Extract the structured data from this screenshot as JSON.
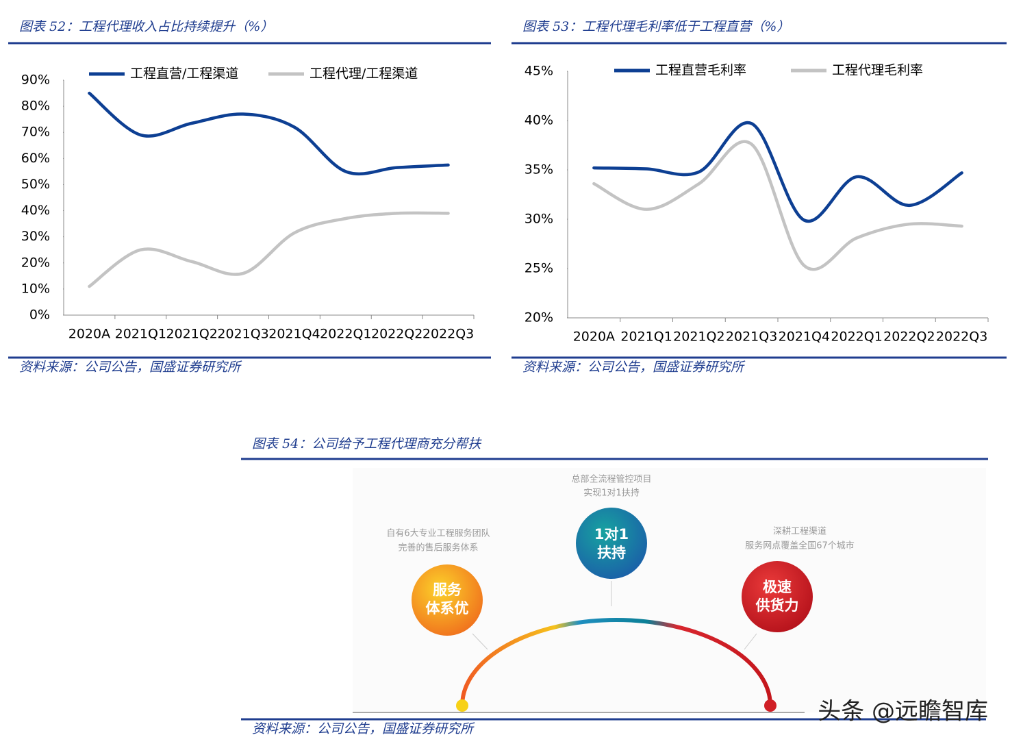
{
  "chart_data": [
    {
      "type": "line",
      "title": "图表 52：工程代理收入占比持续提升（%）",
      "categories": [
        "2020A",
        "2021Q1",
        "2021Q2",
        "2021Q3",
        "2021Q4",
        "2022Q1",
        "2022Q2",
        "2022Q3"
      ],
      "series": [
        {
          "name": "工程直营/工程渠道",
          "color": "#0d3f93",
          "values": [
            85,
            69,
            73.5,
            77,
            72,
            55,
            56.5,
            57.5
          ]
        },
        {
          "name": "工程代理/工程渠道",
          "color": "#c3c3c3",
          "values": [
            11,
            25,
            20.5,
            16,
            31.5,
            37,
            39,
            39
          ]
        }
      ],
      "ylim": [
        0,
        90
      ],
      "yticks": [
        {
          "value": 0,
          "label": "0%"
        },
        {
          "value": 10,
          "label": "10%"
        },
        {
          "value": 20,
          "label": "20%"
        },
        {
          "value": 30,
          "label": "30%"
        },
        {
          "value": 40,
          "label": "40%"
        },
        {
          "value": 50,
          "label": "50%"
        },
        {
          "value": 60,
          "label": "60%"
        },
        {
          "value": 70,
          "label": "70%"
        },
        {
          "value": 80,
          "label": "80%"
        },
        {
          "value": 90,
          "label": "90%"
        }
      ],
      "grid": false,
      "smooth": true,
      "source": "资料来源：公司公告，国盛证券研究所"
    },
    {
      "type": "line",
      "title": "图表 53：工程代理毛利率低于工程直营（%）",
      "categories": [
        "2020A",
        "2021Q1",
        "2021Q2",
        "2021Q3",
        "2021Q4",
        "2022Q1",
        "2022Q2",
        "2022Q3"
      ],
      "series": [
        {
          "name": "工程直营毛利率",
          "color": "#0d3f93",
          "values": [
            35.2,
            35.1,
            34.8,
            39.7,
            29.9,
            34.3,
            31.4,
            34.7
          ]
        },
        {
          "name": "工程代理毛利率",
          "color": "#c3c3c3",
          "values": [
            33.6,
            31,
            33.6,
            37.6,
            25.3,
            28.1,
            29.5,
            29.3
          ]
        }
      ],
      "ylim": [
        20,
        45
      ],
      "yticks": [
        {
          "value": 20,
          "label": "20%"
        },
        {
          "value": 25,
          "label": "25%"
        },
        {
          "value": 30,
          "label": "30%"
        },
        {
          "value": 35,
          "label": "35%"
        },
        {
          "value": 40,
          "label": "40%"
        },
        {
          "value": 45,
          "label": "45%"
        }
      ],
      "grid": false,
      "smooth": true,
      "source": "资料来源：公司公告，国盛证券研究所"
    }
  ],
  "figure_54": {
    "title": "图表 54：公司给予工程代理商充分帮扶",
    "nodes": [
      {
        "label_lines": [
          "服务",
          "体系优"
        ],
        "caption_lines": [
          "自有6大专业工程服务团队",
          "完善的售后服务体系"
        ]
      },
      {
        "label_lines": [
          "1对1",
          "扶持"
        ],
        "caption_lines": [
          "总部全流程管控项目",
          "实现1对1扶持"
        ]
      },
      {
        "label_lines": [
          "极速",
          "供货力"
        ],
        "caption_lines": [
          "深耕工程渠道",
          "服务网点覆盖全国67个城市"
        ]
      }
    ],
    "source": "资料来源：公司公告，国盛证券研究所"
  },
  "watermark": "头条 @远瞻智库"
}
